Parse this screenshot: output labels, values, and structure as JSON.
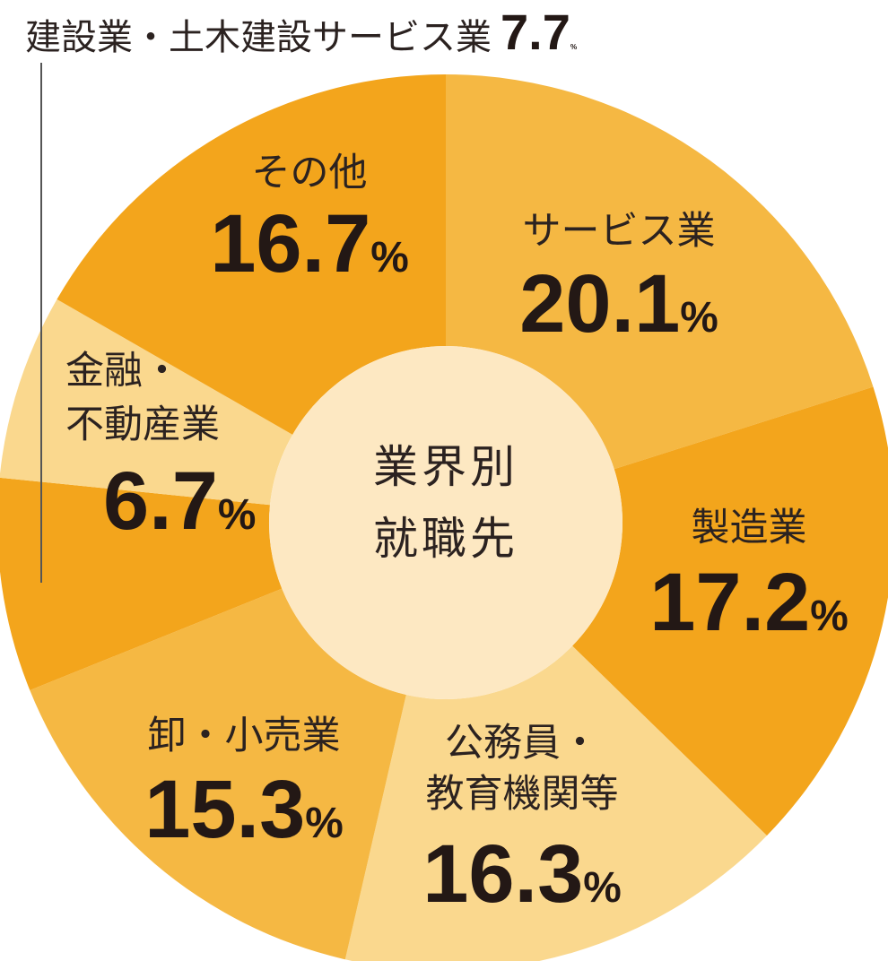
{
  "chart_data": {
    "type": "pie",
    "donut": true,
    "center_label": [
      "業界別",
      "就職先"
    ],
    "unit": "%",
    "slices": [
      {
        "label": [
          "サービス業"
        ],
        "value": 20.1,
        "color": "#f5b843"
      },
      {
        "label": [
          "製造業"
        ],
        "value": 17.2,
        "color": "#f3a51c"
      },
      {
        "label": [
          "公務員・",
          "教育機関等"
        ],
        "value": 16.3,
        "color": "#fad88e"
      },
      {
        "label": [
          "卸・小売業"
        ],
        "value": 15.3,
        "color": "#f5b843"
      },
      {
        "label": [
          "建設業・土木建設サービス業"
        ],
        "value": 7.7,
        "color": "#f3a51c"
      },
      {
        "label": [
          "金融・",
          "不動産業"
        ],
        "value": 6.7,
        "color": "#fad88e"
      },
      {
        "label": [
          "その他"
        ],
        "value": 16.7,
        "color": "#f3a51c"
      }
    ],
    "center_color": "#fde8c2"
  }
}
